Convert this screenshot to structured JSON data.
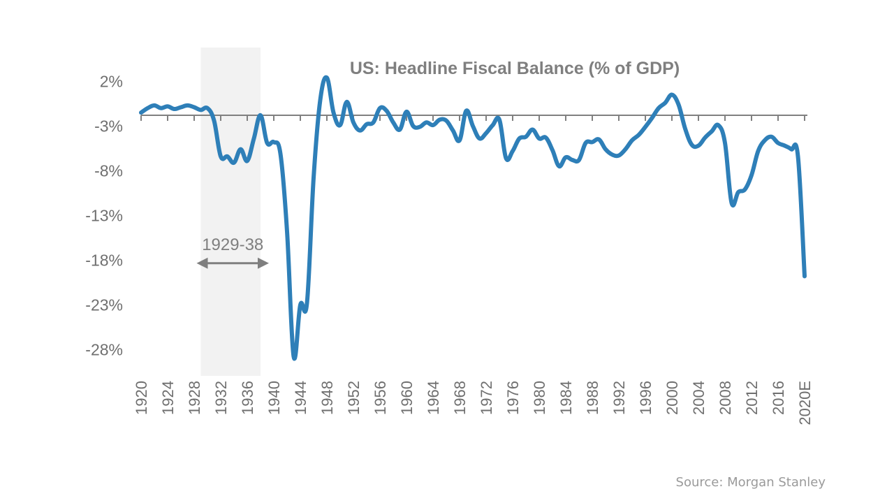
{
  "chart_data": {
    "type": "line",
    "title": "US: Headline Fiscal Balance (% of GDP)",
    "xlabel": "",
    "ylabel": "",
    "ylim": [
      -29,
      5
    ],
    "xlim": [
      1920,
      2020
    ],
    "grid": false,
    "yticks": [
      2,
      -3,
      -8,
      -13,
      -18,
      -23,
      -28
    ],
    "ytick_labels": [
      "2%",
      "-3%",
      "-8%",
      "-13%",
      "-18%",
      "-23%",
      "-28%"
    ],
    "xticks": [
      1920,
      1924,
      1928,
      1932,
      1936,
      1940,
      1944,
      1948,
      1952,
      1956,
      1960,
      1964,
      1968,
      1972,
      1976,
      1980,
      1984,
      1988,
      1992,
      1996,
      2000,
      2004,
      2008,
      2012,
      2016,
      2020
    ],
    "xtick_labels": [
      "1920",
      "1924",
      "1928",
      "1932",
      "1936",
      "1940",
      "1944",
      "1948",
      "1952",
      "1956",
      "1960",
      "1964",
      "1968",
      "1972",
      "1976",
      "1980",
      "1984",
      "1988",
      "1992",
      "1996",
      "2000",
      "2004",
      "2008",
      "2012",
      "2016",
      "2020E"
    ],
    "shaded_region": {
      "x_start": 1929,
      "x_end": 1938,
      "color": "#f2f2f2"
    },
    "annotation": {
      "label": "1929-38",
      "from": 1929,
      "to": 1938,
      "y": -16
    },
    "series": [
      {
        "name": "US Headline Fiscal Balance",
        "color": "#2e7fb8",
        "x": [
          1920,
          1921,
          1922,
          1923,
          1924,
          1925,
          1926,
          1927,
          1928,
          1929,
          1930,
          1931,
          1932,
          1933,
          1934,
          1935,
          1936,
          1937,
          1938,
          1939,
          1940,
          1941,
          1942,
          1943,
          1944,
          1945,
          1946,
          1947,
          1948,
          1949,
          1950,
          1951,
          1952,
          1953,
          1954,
          1955,
          1956,
          1957,
          1958,
          1959,
          1960,
          1961,
          1962,
          1963,
          1964,
          1965,
          1966,
          1967,
          1968,
          1969,
          1970,
          1971,
          1972,
          1973,
          1974,
          1975,
          1976,
          1977,
          1978,
          1979,
          1980,
          1981,
          1982,
          1983,
          1984,
          1985,
          1986,
          1987,
          1988,
          1989,
          1990,
          1991,
          1992,
          1993,
          1994,
          1995,
          1996,
          1997,
          1998,
          1999,
          2000,
          2001,
          2002,
          2003,
          2004,
          2005,
          2006,
          2007,
          2008,
          2009,
          2010,
          2011,
          2012,
          2013,
          2014,
          2015,
          2016,
          2017,
          2018,
          2019,
          2020
        ],
        "values": [
          0.3,
          0.8,
          1.1,
          0.8,
          1.0,
          0.7,
          0.9,
          1.1,
          0.9,
          0.6,
          0.8,
          -0.6,
          -4.6,
          -4.6,
          -5.3,
          -3.8,
          -5.1,
          -2.6,
          0.0,
          -3.1,
          -3.0,
          -4.3,
          -13.0,
          -27.0,
          -21.2,
          -21.0,
          -7.0,
          1.7,
          4.2,
          0.3,
          -1.1,
          1.5,
          -0.8,
          -1.7,
          -1.0,
          -0.8,
          0.8,
          0.5,
          -0.8,
          -1.6,
          0.4,
          -1.2,
          -1.3,
          -0.8,
          -1.1,
          -0.5,
          -0.6,
          -1.7,
          -2.8,
          0.5,
          -1.2,
          -2.6,
          -2.0,
          -1.1,
          -0.5,
          -4.8,
          -4.0,
          -2.6,
          -2.4,
          -1.6,
          -2.6,
          -2.5,
          -3.9,
          -5.7,
          -4.7,
          -5.0,
          -5.0,
          -3.1,
          -3.0,
          -2.7,
          -3.8,
          -4.4,
          -4.5,
          -3.8,
          -2.8,
          -2.2,
          -1.3,
          -0.3,
          0.8,
          1.4,
          2.3,
          1.2,
          -1.5,
          -3.3,
          -3.4,
          -2.5,
          -1.8,
          -1.1,
          -3.1,
          -9.8,
          -8.6,
          -8.3,
          -6.7,
          -4.0,
          -2.8,
          -2.4,
          -3.1,
          -3.4,
          -3.8,
          -4.6,
          -18.0
        ]
      }
    ],
    "source": "Source: Morgan Stanley"
  }
}
